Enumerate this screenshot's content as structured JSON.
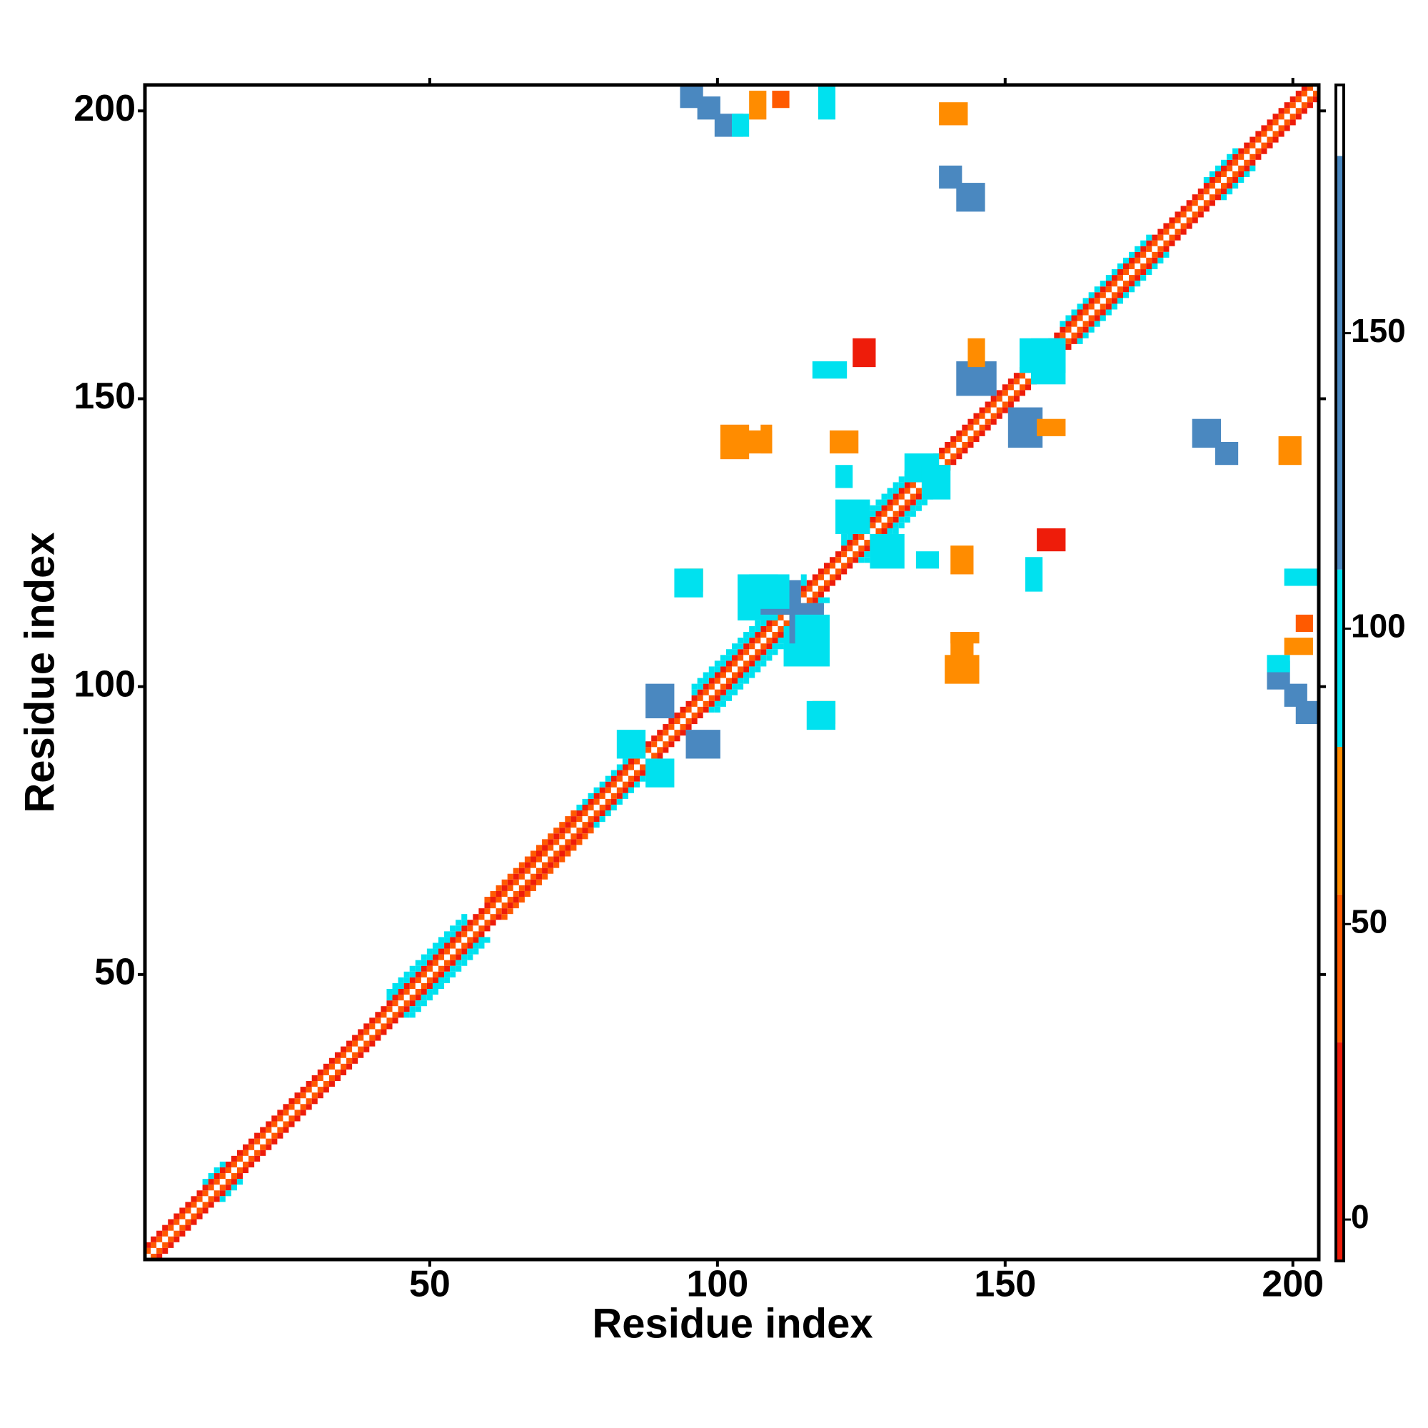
{
  "chart_data": {
    "type": "heatmap",
    "x_label": "Residue index",
    "y_label": "Residue index",
    "xlim": [
      0.5,
      204.5
    ],
    "ylim": [
      0.5,
      204.5
    ],
    "xticks": [
      50,
      100,
      150,
      200
    ],
    "yticks": [
      50,
      100,
      150,
      200
    ],
    "symmetric": true,
    "colorbar_lim": [
      -7,
      192
    ],
    "colorbar_ticks": [
      0,
      50,
      100,
      150
    ],
    "colorscale": [
      {
        "from": -7,
        "to": 30,
        "color": "#ee1c0a"
      },
      {
        "from": 30,
        "to": 55,
        "color": "#ff5a00"
      },
      {
        "from": 55,
        "to": 80,
        "color": "#ff8c00"
      },
      {
        "from": 80,
        "to": 110,
        "color": "#00e1ef"
      },
      {
        "from": 110,
        "to": 180,
        "color": "#4a88c0"
      },
      {
        "from": 180,
        "to": 192,
        "color": "#ffffff"
      }
    ],
    "diagonal_bands": [
      {
        "offset": 0,
        "from": 1,
        "to": 204,
        "value": 185
      },
      {
        "offset": 1,
        "from": 1,
        "to": 203,
        "value": 40
      },
      {
        "offset": 2,
        "from": 1,
        "to": 202,
        "value": 15
      },
      {
        "offset": 3,
        "from": 11,
        "to": 14,
        "value": 95
      },
      {
        "offset": 3,
        "from": 43,
        "to": 56,
        "value": 95
      },
      {
        "offset": 3,
        "from": 60,
        "to": 75,
        "value": 40
      },
      {
        "offset": 3,
        "from": 76,
        "to": 84,
        "value": 95
      },
      {
        "offset": 3,
        "from": 96,
        "to": 115,
        "value": 95
      },
      {
        "offset": 3,
        "from": 122,
        "to": 135,
        "value": 95
      },
      {
        "offset": 3,
        "from": 160,
        "to": 175,
        "value": 95
      },
      {
        "offset": 3,
        "from": 185,
        "to": 190,
        "value": 95
      },
      {
        "offset": 4,
        "from": 43,
        "to": 56,
        "value": 95
      },
      {
        "offset": 4,
        "from": 96,
        "to": 115,
        "value": 95
      },
      {
        "offset": 4,
        "from": 122,
        "to": 135,
        "value": 95
      }
    ],
    "blocks": [
      {
        "x": [
          94,
          97
        ],
        "y": [
          201,
          204
        ],
        "value": 140
      },
      {
        "x": [
          97,
          100
        ],
        "y": [
          199,
          202
        ],
        "value": 140
      },
      {
        "x": [
          100,
          104
        ],
        "y": [
          196,
          199
        ],
        "value": 140
      },
      {
        "x": [
          103,
          105
        ],
        "y": [
          196,
          199
        ],
        "value": 95
      },
      {
        "x": [
          106,
          108
        ],
        "y": [
          199,
          203
        ],
        "value": 65
      },
      {
        "x": [
          110,
          112
        ],
        "y": [
          201,
          203
        ],
        "value": 40
      },
      {
        "x": [
          118,
          120
        ],
        "y": [
          199,
          204
        ],
        "value": 95
      },
      {
        "x": [
          139,
          143
        ],
        "y": [
          198,
          201
        ],
        "value": 65
      },
      {
        "x": [
          139,
          142
        ],
        "y": [
          187,
          190
        ],
        "value": 140
      },
      {
        "x": [
          142,
          146
        ],
        "y": [
          183,
          187
        ],
        "value": 140
      },
      {
        "x": [
          142,
          148
        ],
        "y": [
          151,
          156
        ],
        "value": 140
      },
      {
        "x": [
          144,
          146
        ],
        "y": [
          156,
          160
        ],
        "value": 65
      },
      {
        "x": [
          155,
          160
        ],
        "y": [
          153,
          160
        ],
        "value": 95
      },
      {
        "x": [
          104,
          110
        ],
        "y": [
          112,
          119
        ],
        "value": 95
      },
      {
        "x": [
          108,
          114
        ],
        "y": [
          113,
          118
        ],
        "value": 140
      },
      {
        "x": [
          114,
          119
        ],
        "y": [
          106,
          112
        ],
        "value": 95
      },
      {
        "x": [
          88,
          92
        ],
        "y": [
          95,
          100
        ],
        "value": 140
      },
      {
        "x": [
          83,
          87
        ],
        "y": [
          88,
          92
        ],
        "value": 95
      },
      {
        "x": [
          121,
          126
        ],
        "y": [
          127,
          132
        ],
        "value": 95
      },
      {
        "x": [
          133,
          138
        ],
        "y": [
          136,
          140
        ],
        "value": 95
      },
      {
        "x": [
          117,
          120
        ],
        "y": [
          94,
          97
        ],
        "value": 65
      },
      {
        "x": [
          120,
          124
        ],
        "y": [
          141,
          144
        ],
        "value": 65
      },
      {
        "x": [
          103,
          109
        ],
        "y": [
          141,
          144
        ],
        "value": 65
      },
      {
        "x": [
          124,
          127
        ],
        "y": [
          156,
          160
        ],
        "value": 15
      },
      {
        "x": [
          117,
          122
        ],
        "y": [
          154,
          156
        ],
        "value": 95
      },
      {
        "x": [
          93,
          97
        ],
        "y": [
          116,
          120
        ],
        "value": 95
      },
      {
        "x": [
          135,
          138
        ],
        "y": [
          121,
          123
        ],
        "value": 95
      },
      {
        "x": [
          141,
          145
        ],
        "y": [
          108,
          109
        ],
        "value": 65
      },
      {
        "x": [
          140,
          145
        ],
        "y": [
          101,
          105
        ],
        "value": 65
      }
    ]
  }
}
